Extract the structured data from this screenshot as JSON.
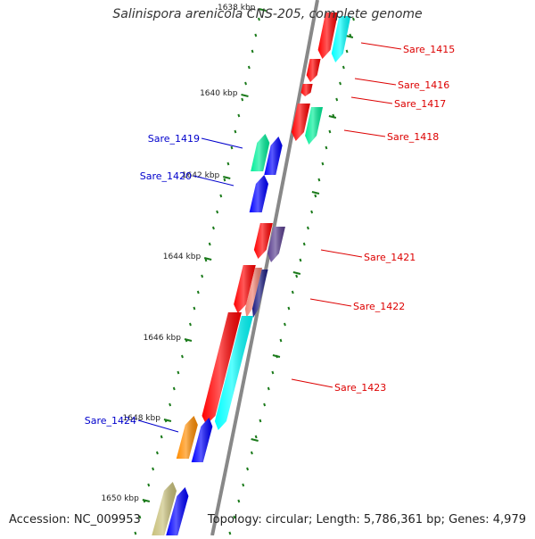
{
  "title": "Salinispora arenicola CNS-205, complete genome",
  "footer": {
    "accession": "Accession: NC_009953",
    "topology": "Topology: circular; Length: 5,786,361 bp; Genes: 4,979"
  },
  "ticks": [
    "1638 kbp",
    "1640 kbp",
    "1642 kbp",
    "1644 kbp",
    "1646 kbp",
    "1648 kbp",
    "1650 kbp"
  ],
  "genes": [
    {
      "id": "Sare_1415",
      "strand": "plus",
      "color": "#ff0000"
    },
    {
      "id": "Sare_1415b",
      "strand": "plus",
      "color": "#00ffff"
    },
    {
      "id": "Sare_1416",
      "strand": "plus",
      "color": "#ff0000"
    },
    {
      "id": "Sare_1417",
      "strand": "plus",
      "color": "#ff0000"
    },
    {
      "id": "Sare_1418",
      "strand": "plus",
      "color": "#ff0000"
    },
    {
      "id": "Sare_1418b",
      "strand": "plus",
      "color": "#00ee99"
    },
    {
      "id": "Sare_1419",
      "strand": "minus",
      "color": "#00ee99"
    },
    {
      "id": "Sare_1419b",
      "strand": "minus",
      "color": "#0000ff"
    },
    {
      "id": "Sare_1420",
      "strand": "minus",
      "color": "#0000ff"
    },
    {
      "id": "Sare_1421",
      "strand": "plus",
      "color": "#ff0000"
    },
    {
      "id": "Sare_1421b",
      "strand": "plus",
      "color": "#5a3f8f"
    },
    {
      "id": "Sare_1422",
      "strand": "plus",
      "color": "#ff0000"
    },
    {
      "id": "Sare_1422b",
      "strand": "plus",
      "color": "#f08070"
    },
    {
      "id": "Sare_1422c",
      "strand": "plus",
      "color": "#1a1a80"
    },
    {
      "id": "Sare_1423",
      "strand": "plus",
      "color": "#ff0000"
    },
    {
      "id": "Sare_1423b",
      "strand": "plus",
      "color": "#00ffff"
    },
    {
      "id": "Sare_1424",
      "strand": "minus",
      "color": "#ff8c00"
    },
    {
      "id": "Sare_1424b",
      "strand": "minus",
      "color": "#0000ff"
    },
    {
      "id": "Sare_1425",
      "strand": "minus",
      "color": "#c8c07a"
    },
    {
      "id": "Sare_1425b",
      "strand": "minus",
      "color": "#0000ff"
    }
  ],
  "labels": [
    {
      "text": "Sare_1415",
      "strand": "plus"
    },
    {
      "text": "Sare_1416",
      "strand": "plus"
    },
    {
      "text": "Sare_1417",
      "strand": "plus"
    },
    {
      "text": "Sare_1418",
      "strand": "plus"
    },
    {
      "text": "Sare_1419",
      "strand": "minus"
    },
    {
      "text": "Sare_1420",
      "strand": "minus"
    },
    {
      "text": "Sare_1421",
      "strand": "plus"
    },
    {
      "text": "Sare_1422",
      "strand": "plus"
    },
    {
      "text": "Sare_1423",
      "strand": "plus"
    },
    {
      "text": "Sare_1424",
      "strand": "minus"
    }
  ],
  "colors": {
    "backbone": "#888888",
    "tick": "#1a7a1a",
    "plus_label": "#dd0000",
    "minus_label": "#0000cc"
  }
}
